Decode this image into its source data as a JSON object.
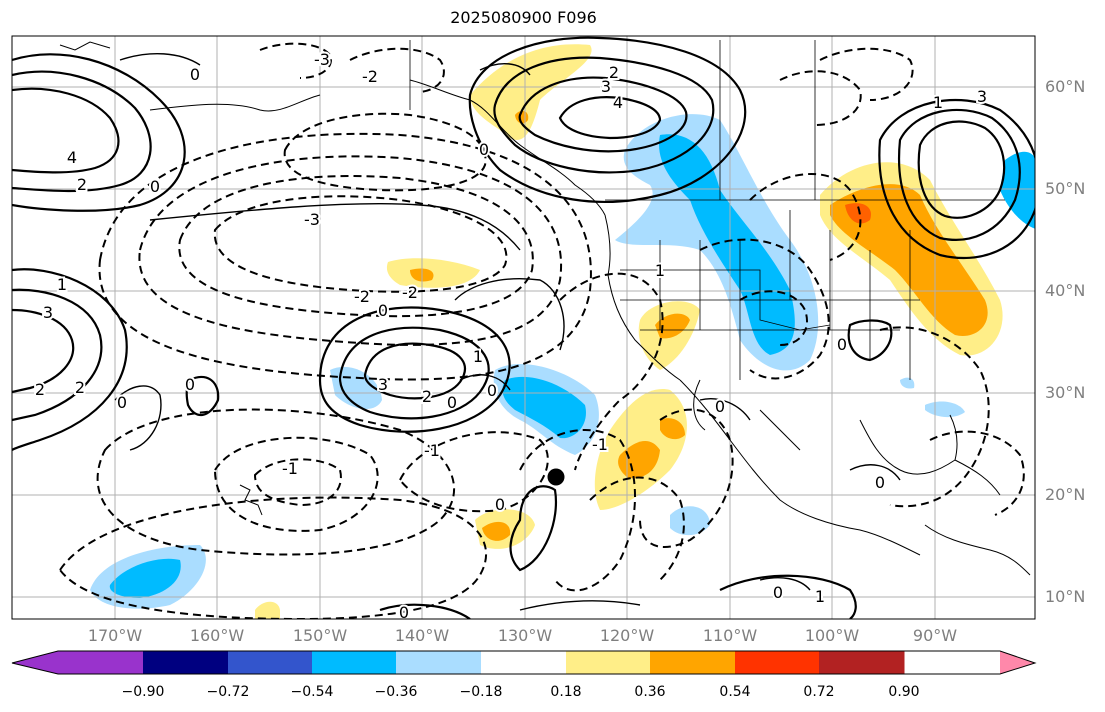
{
  "title": "2025080900 F096",
  "lat_labels": [
    "60°N",
    "50°N",
    "40°N",
    "30°N",
    "20°N",
    "10°N"
  ],
  "lon_labels": [
    "170°W",
    "160°W",
    "150°W",
    "140°W",
    "130°W",
    "120°W",
    "110°W",
    "100°W",
    "90°W"
  ],
  "contour_labels": {
    "positive": [
      "1",
      "2",
      "3",
      "4"
    ],
    "zero": "0",
    "negative": [
      "-1",
      "-2",
      "-3"
    ]
  },
  "colorbar": {
    "ticks": [
      "−0.90",
      "−0.72",
      "−0.54",
      "−0.36",
      "−0.18",
      "0.18",
      "0.36",
      "0.54",
      "0.72",
      "0.90"
    ],
    "colors": [
      "#9933cc",
      "#000080",
      "#3355cc",
      "#00bbff",
      "#aaddff",
      "#ffffff",
      "#ffee88",
      "#ffa500",
      "#ff3300",
      "#b22222",
      "#ff88aa"
    ]
  },
  "marker": {
    "lat": 22,
    "lon": -126
  }
}
